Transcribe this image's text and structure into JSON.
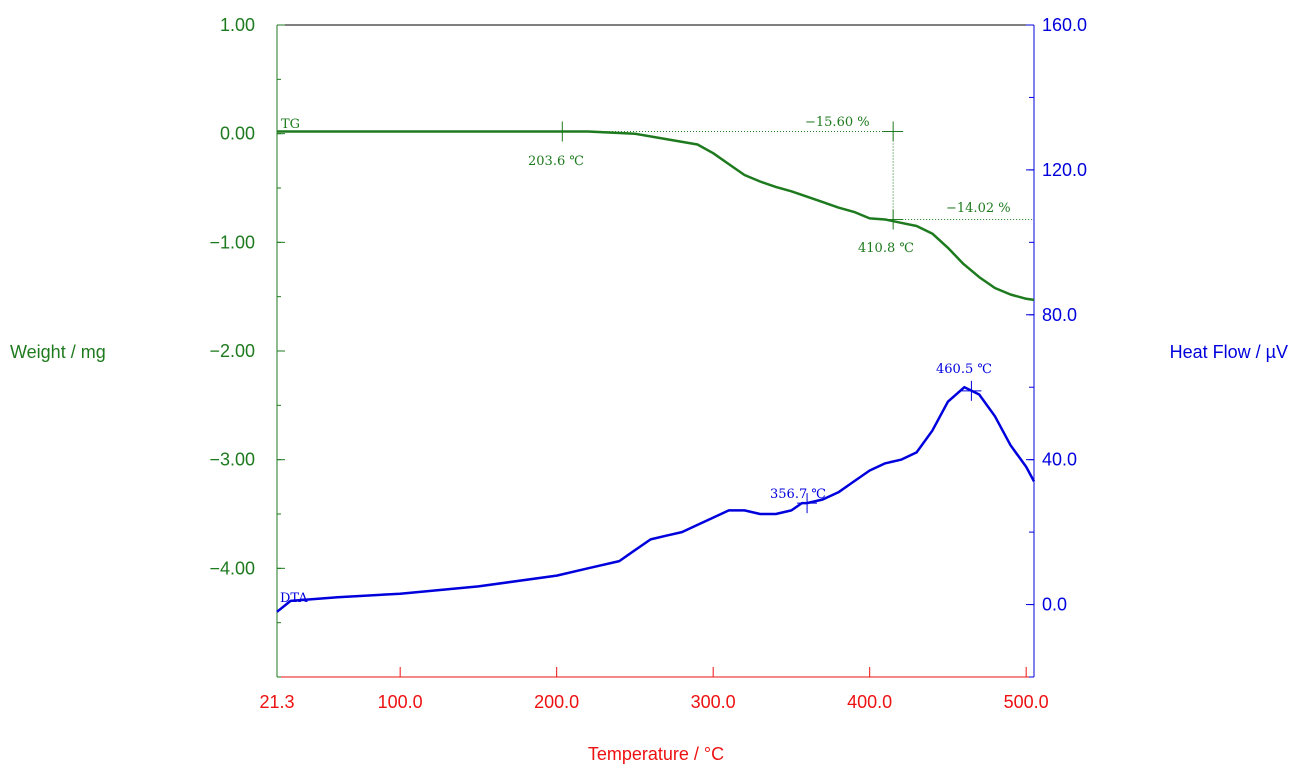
{
  "chart_data": {
    "type": "line",
    "title": "",
    "xlabel": "Temperature / °C",
    "ylabel_left": "Weight / mg",
    "ylabel_right": "Heat Flow / µV",
    "xlim": [
      21.3,
      505
    ],
    "ylim_left": [
      -5.0,
      1.0
    ],
    "ylim_right": [
      -20,
      160
    ],
    "x_ticks": [
      21.3,
      100.0,
      200.0,
      300.0,
      400.0,
      500.0
    ],
    "x_tick_labels": [
      "21.3",
      "100.0",
      "200.0",
      "300.0",
      "400.0",
      "500.0"
    ],
    "left_ticks": [
      1.0,
      0.0,
      -1.0,
      -2.0,
      -3.0,
      -4.0
    ],
    "left_tick_labels": [
      "1.00",
      "0.00",
      "−1.00",
      "−2.00",
      "−3.00",
      "−4.00"
    ],
    "right_ticks": [
      160,
      120,
      80,
      40,
      0
    ],
    "right_tick_labels": [
      "160.0",
      "120.0",
      "80.0",
      "40.0",
      "0.0"
    ],
    "grid": false,
    "colors": {
      "tg": "#1e7a1e",
      "dta": "#0000dd",
      "x_axis_text": "#ee1111",
      "left_axis_text": "#1e7a1e",
      "right_axis_text": "#0000dd"
    },
    "series": [
      {
        "name": "TG",
        "axis": "left",
        "x": [
          21.3,
          50,
          100,
          150,
          200,
          220,
          250,
          270,
          290,
          300,
          310,
          320,
          330,
          340,
          350,
          360,
          370,
          380,
          390,
          400,
          410,
          420,
          430,
          440,
          450,
          460,
          470,
          480,
          490,
          500,
          505
        ],
        "y": [
          0.02,
          0.02,
          0.02,
          0.02,
          0.02,
          0.02,
          0.0,
          -0.05,
          -0.1,
          -0.18,
          -0.28,
          -0.38,
          -0.44,
          -0.49,
          -0.53,
          -0.58,
          -0.63,
          -0.68,
          -0.72,
          -0.78,
          -0.79,
          -0.82,
          -0.85,
          -0.92,
          -1.05,
          -1.2,
          -1.32,
          -1.42,
          -1.48,
          -1.52,
          -1.53
        ]
      },
      {
        "name": "DTA",
        "axis": "right",
        "x": [
          21.3,
          30,
          60,
          100,
          150,
          200,
          220,
          240,
          250,
          260,
          270,
          280,
          290,
          300,
          310,
          320,
          330,
          340,
          350,
          356.7,
          360,
          370,
          380,
          390,
          400,
          410,
          420,
          430,
          440,
          450,
          460.5,
          470,
          480,
          490,
          500,
          505
        ],
        "y": [
          -2,
          1,
          2,
          3,
          5,
          8,
          10,
          12,
          15,
          18,
          19,
          20,
          22,
          24,
          26,
          26,
          25,
          25,
          26,
          28,
          28,
          29,
          31,
          34,
          37,
          39,
          40,
          42,
          48,
          56,
          60,
          58,
          52,
          44,
          38,
          34
        ]
      }
    ],
    "annotations": {
      "tg_label": "TG",
      "dta_label": "DTA",
      "onset_temp": "203.6 ℃",
      "step1_loss": "−15.60 %",
      "step1_end_temp": "410.8 ℃",
      "step2_loss": "−14.02 %",
      "dta_peak1": "356.7 ℃",
      "dta_peak2": "460.5 ℃"
    }
  }
}
